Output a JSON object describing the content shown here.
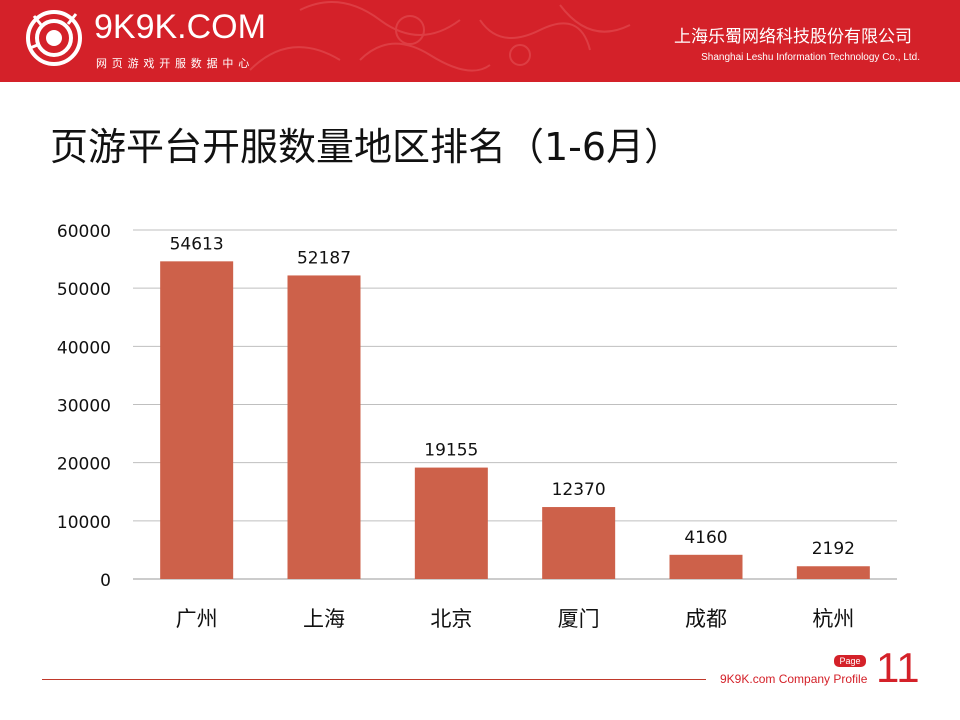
{
  "header": {
    "logo_text": "9K9K.COM",
    "logo_subtitle": "网页游戏开服数据中心",
    "company_cn": "上海乐蜀网络科技股份有限公司",
    "company_en": "Shanghai Leshu Information Technology Co., Ltd."
  },
  "page_title": "页游平台开服数量地区排名（1-6月）",
  "chart_data": {
    "type": "bar",
    "categories": [
      "广州",
      "上海",
      "北京",
      "厦门",
      "成都",
      "杭州"
    ],
    "values": [
      54613,
      52187,
      19155,
      12370,
      4160,
      2192
    ],
    "ylim": [
      0,
      60000
    ],
    "yticks": [
      0,
      10000,
      20000,
      30000,
      40000,
      50000,
      60000
    ],
    "grid": true,
    "bar_color": "#cd614a",
    "data_labels": true
  },
  "footer": {
    "badge": "Page",
    "text": "9K9K.com Company Profile",
    "page_number": "11"
  },
  "colors": {
    "brand_red": "#d42129"
  }
}
